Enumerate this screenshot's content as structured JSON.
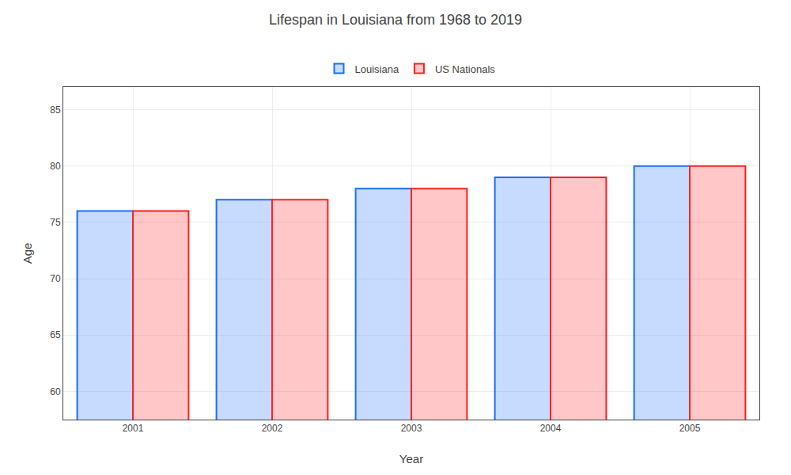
{
  "chart_data": {
    "type": "bar",
    "title": "Lifespan in Louisiana from 1968 to 2019",
    "x_label": "Year",
    "y_label": "Age",
    "categories": [
      "2001",
      "2002",
      "2003",
      "2004",
      "2005"
    ],
    "series": [
      {
        "name": "Louisiana",
        "color": "#1a6eff",
        "values": [
          76,
          77,
          78,
          79,
          80
        ]
      },
      {
        "name": "US Nationals",
        "color": "#ff2020",
        "values": [
          76,
          77,
          78,
          79,
          80
        ]
      }
    ],
    "ylim": [
      57.5,
      87
    ],
    "yticks": [
      60,
      65,
      70,
      75,
      80,
      85
    ],
    "grid": true,
    "legend": "top"
  }
}
